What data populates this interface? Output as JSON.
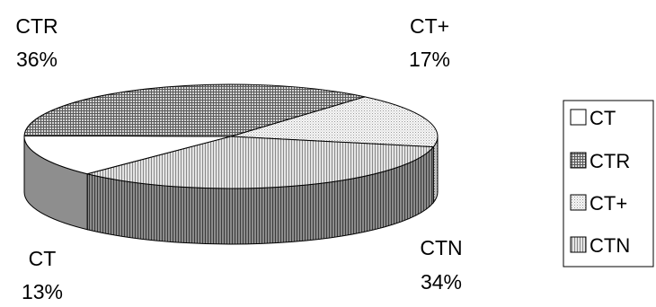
{
  "chart_data": {
    "type": "pie",
    "style": "3d-pie",
    "slices": [
      {
        "name": "CT",
        "value": 13
      },
      {
        "name": "CTR",
        "value": 36
      },
      {
        "name": "CT+",
        "value": 17
      },
      {
        "name": "CTN",
        "value": 34
      }
    ],
    "data_labels": [
      {
        "category": "CT",
        "percent": "13%"
      },
      {
        "category": "CTR",
        "percent": "36%"
      },
      {
        "category": "CT+",
        "percent": "17%"
      },
      {
        "category": "CTN",
        "percent": "34%"
      }
    ],
    "legend": {
      "placement": "right",
      "items": [
        "CT",
        "CTR",
        "CT+",
        "CTN"
      ]
    },
    "colors": {
      "CT": "#ffffff",
      "CTR": "#8a8a8a",
      "CT+": "#e0e0e0",
      "CTN": "#7a7a7a"
    }
  }
}
